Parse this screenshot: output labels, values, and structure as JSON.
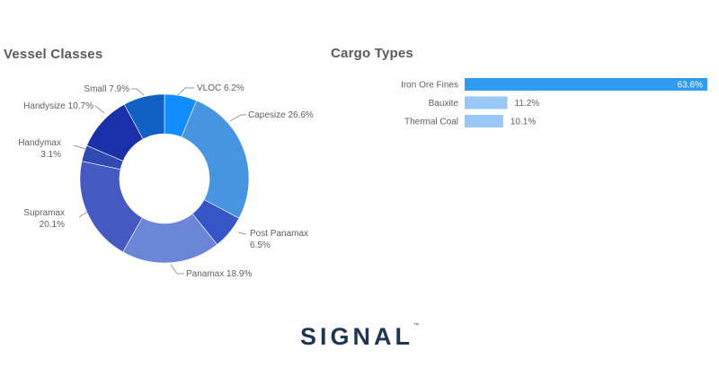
{
  "charts": [
    {
      "title": "Vessel Classes",
      "chart_data": {
        "type": "pie",
        "title": "Vessel Classes",
        "slices": [
          {
            "label": "VLOC",
            "value": 6.2,
            "display": "6.2%",
            "color": "#118dff"
          },
          {
            "label": "Capesize",
            "value": 26.6,
            "display": "26.6%",
            "color": "#4795e0"
          },
          {
            "label": "Post Panamax",
            "value": 6.5,
            "display": "6.5%",
            "color": "#3656c7"
          },
          {
            "label": "Panamax",
            "value": 18.9,
            "display": "18.9%",
            "color": "#6b85d9"
          },
          {
            "label": "Supramax",
            "value": 20.1,
            "display": "20.1%",
            "color": "#4559c2"
          },
          {
            "label": "Handymax",
            "value": 3.1,
            "display": "3.1%",
            "color": "#3049b3"
          },
          {
            "label": "Handysize",
            "value": 10.7,
            "display": "10.7%",
            "color": "#1a2fa8"
          },
          {
            "label": "Small",
            "value": 7.9,
            "display": "7.9%",
            "color": "#1160c4"
          }
        ]
      }
    },
    {
      "title": "Cargo Types",
      "chart_data": {
        "type": "bar",
        "orientation": "horizontal",
        "title": "Cargo Types",
        "categories": [
          "Iron Ore Fines",
          "Bauxite",
          "Thermal Coal"
        ],
        "values": [
          63.6,
          11.2,
          10.1
        ],
        "value_labels": [
          "63.6%",
          "11.2%",
          "10.1%"
        ],
        "colors": [
          "#2f9bf2",
          "#99c8f8",
          "#99c8f8"
        ],
        "xlim": [
          0,
          63.6
        ]
      }
    }
  ],
  "logo": {
    "text": "SIGNAL",
    "mark": "™"
  }
}
